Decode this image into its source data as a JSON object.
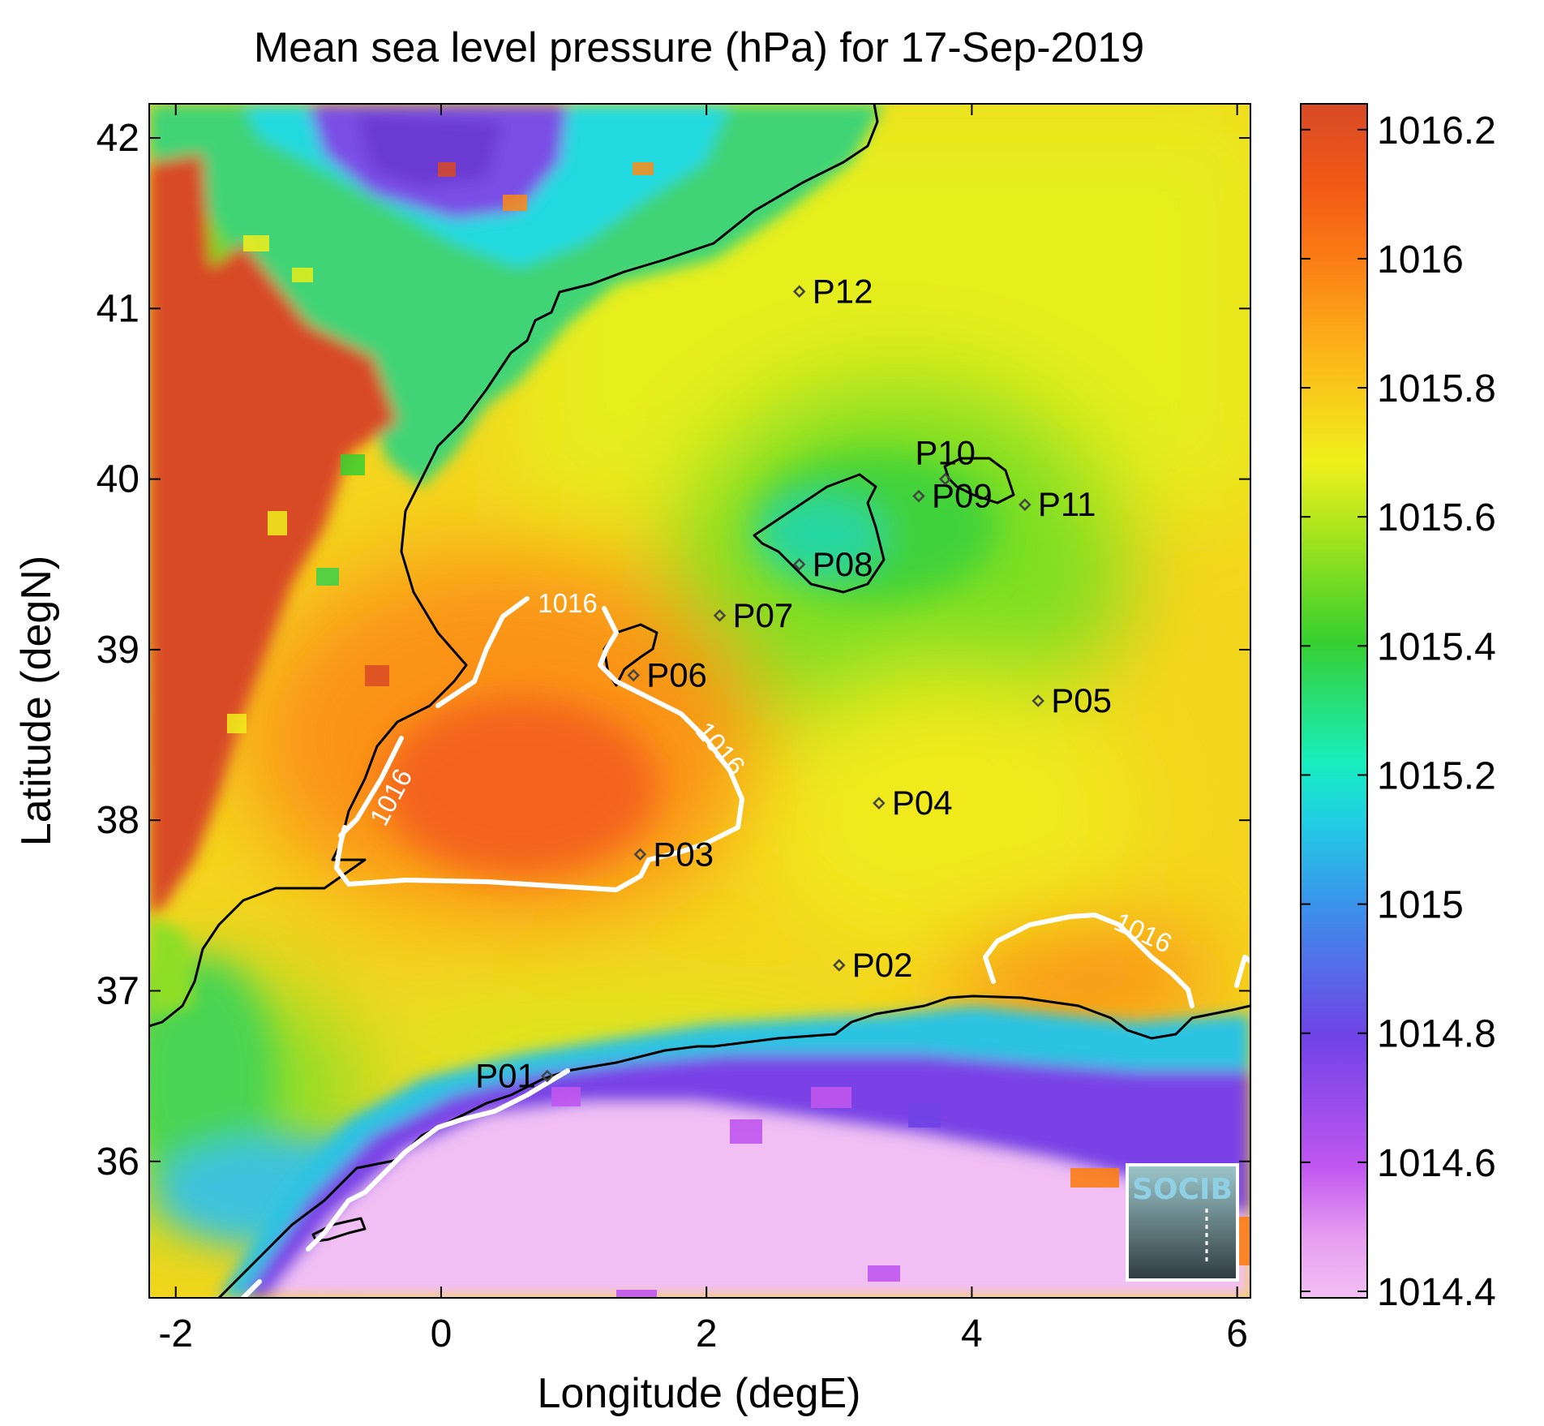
{
  "title": "Mean sea level pressure (hPa) for 17-Sep-2019",
  "chart_data": {
    "type": "heatmap",
    "xlabel": "Longitude (degE)",
    "ylabel": "Latitude (degN)",
    "xlim": [
      -2.2,
      6.1
    ],
    "ylim": [
      35.2,
      42.2
    ],
    "x_ticks": [
      -2,
      0,
      2,
      4,
      6
    ],
    "y_ticks": [
      36,
      37,
      38,
      39,
      40,
      41,
      42
    ],
    "x_tick_labels": [
      "-2",
      "0",
      "2",
      "4",
      "6"
    ],
    "y_tick_labels": [
      "36",
      "37",
      "38",
      "39",
      "40",
      "41",
      "42"
    ],
    "colorbar": {
      "range": [
        1014.4,
        1016.25
      ],
      "ticks": [
        1014.4,
        1014.6,
        1014.8,
        1015.0,
        1015.2,
        1015.4,
        1015.6,
        1015.8,
        1016.0,
        1016.2
      ],
      "tick_labels": [
        "1014.4",
        "1014.6",
        "1014.8",
        "1015",
        "1015.2",
        "1015.4",
        "1015.6",
        "1015.8",
        "1016",
        "1016.2"
      ]
    },
    "contour": {
      "level": 1016,
      "label": "1016",
      "color": "#ffffff"
    },
    "stations": [
      {
        "label": "P01",
        "lon": 0.8,
        "lat": 36.5
      },
      {
        "label": "P02",
        "lon": 3.0,
        "lat": 37.15
      },
      {
        "label": "P03",
        "lon": 1.5,
        "lat": 37.8
      },
      {
        "label": "P04",
        "lon": 3.3,
        "lat": 38.1
      },
      {
        "label": "P05",
        "lon": 4.5,
        "lat": 38.7
      },
      {
        "label": "P06",
        "lon": 1.45,
        "lat": 38.85
      },
      {
        "label": "P07",
        "lon": 2.1,
        "lat": 39.2
      },
      {
        "label": "P08",
        "lon": 2.7,
        "lat": 39.5
      },
      {
        "label": "P09",
        "lon": 3.6,
        "lat": 39.9
      },
      {
        "label": "P10",
        "lon": 3.8,
        "lat": 40.0
      },
      {
        "label": "P11",
        "lon": 4.4,
        "lat": 39.85
      },
      {
        "label": "P12",
        "lon": 2.7,
        "lat": 41.1
      }
    ]
  },
  "logo": {
    "text": "SOCIB"
  }
}
